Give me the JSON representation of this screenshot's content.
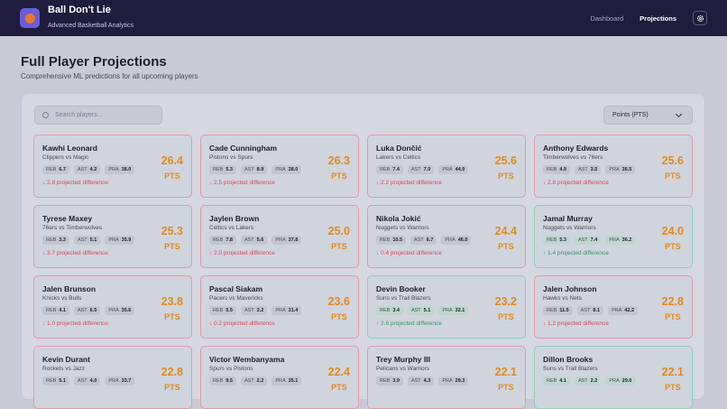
{
  "header": {
    "title": "Ball Don't Lie",
    "subtitle": "Advanced Basketball Analytics",
    "nav": [
      "Dashboard",
      "Projections"
    ]
  },
  "page": {
    "title": "Full Player Projections",
    "subtitle": "Comprehensive ML predictions for all upcoming players"
  },
  "controls": {
    "search_placeholder": "Search players...",
    "select": "Points (PTS)"
  },
  "players": [
    {
      "name": "Kawhi Leonard",
      "matchup": "Clippers vs Magic",
      "stats": [
        {
          "label": "REB",
          "value": "6.7"
        },
        {
          "label": "AST",
          "value": "4.2"
        },
        {
          "label": "PRA",
          "value": "38.0"
        }
      ],
      "projection": "26.4",
      "unit": "PTS",
      "difference": "↓ 2.8 projected difference",
      "trend": "down"
    },
    {
      "name": "Cade Cunningham",
      "matchup": "Pistons vs Spurs",
      "stats": [
        {
          "label": "REB",
          "value": "5.3"
        },
        {
          "label": "AST",
          "value": "8.9"
        },
        {
          "label": "PRA",
          "value": "38.0"
        }
      ],
      "projection": "26.3",
      "unit": "PTS",
      "difference": "↓ 2.5 projected difference",
      "trend": "down"
    },
    {
      "name": "Luka Dončić",
      "matchup": "Lakers vs Celtics",
      "stats": [
        {
          "label": "REB",
          "value": "7.4"
        },
        {
          "label": "AST",
          "value": "7.0"
        },
        {
          "label": "PRA",
          "value": "44.9"
        }
      ],
      "projection": "25.6",
      "unit": "PTS",
      "difference": "↓ 2.2 projected difference",
      "trend": "down"
    },
    {
      "name": "Anthony Edwards",
      "matchup": "Timberwolves vs 76ers",
      "stats": [
        {
          "label": "REB",
          "value": "4.9"
        },
        {
          "label": "AST",
          "value": "3.5"
        },
        {
          "label": "PRA",
          "value": "36.5"
        }
      ],
      "projection": "25.6",
      "unit": "PTS",
      "difference": "↓ 2.8 projected difference",
      "trend": "down"
    },
    {
      "name": "Tyrese Maxey",
      "matchup": "76ers vs Timberwolves",
      "stats": [
        {
          "label": "REB",
          "value": "3.3"
        },
        {
          "label": "AST",
          "value": "5.1"
        },
        {
          "label": "PRA",
          "value": "35.9"
        }
      ],
      "projection": "25.3",
      "unit": "PTS",
      "difference": "↓ 3.7 projected difference",
      "trend": "down"
    },
    {
      "name": "Jaylen Brown",
      "matchup": "Celtics vs Lakers",
      "stats": [
        {
          "label": "REB",
          "value": "7.8"
        },
        {
          "label": "AST",
          "value": "5.6"
        },
        {
          "label": "PRA",
          "value": "37.8"
        }
      ],
      "projection": "25.0",
      "unit": "PTS",
      "difference": "↓ 2.0 projected difference",
      "trend": "down"
    },
    {
      "name": "Nikola Jokić",
      "matchup": "Nuggets vs Warriors",
      "stats": [
        {
          "label": "REB",
          "value": "10.5"
        },
        {
          "label": "AST",
          "value": "6.7"
        },
        {
          "label": "PRA",
          "value": "46.0"
        }
      ],
      "projection": "24.4",
      "unit": "PTS",
      "difference": "↓ 0.4 projected difference",
      "trend": "down"
    },
    {
      "name": "Jamal Murray",
      "matchup": "Nuggets vs Warriors",
      "stats": [
        {
          "label": "REB",
          "value": "5.3"
        },
        {
          "label": "AST",
          "value": "7.4"
        },
        {
          "label": "PRA",
          "value": "36.2"
        }
      ],
      "projection": "24.0",
      "unit": "PTS",
      "difference": "↑ 1.4 projected difference",
      "trend": "up"
    },
    {
      "name": "Jalen Brunson",
      "matchup": "Knicks vs Bulls",
      "stats": [
        {
          "label": "REB",
          "value": "4.1"
        },
        {
          "label": "AST",
          "value": "6.5"
        },
        {
          "label": "PRA",
          "value": "35.6"
        }
      ],
      "projection": "23.8",
      "unit": "PTS",
      "difference": "↓ 1.0 projected difference",
      "trend": "down"
    },
    {
      "name": "Pascal Siakam",
      "matchup": "Pacers vs Mavericks",
      "stats": [
        {
          "label": "REB",
          "value": "5.5"
        },
        {
          "label": "AST",
          "value": "3.2"
        },
        {
          "label": "PRA",
          "value": "31.4"
        }
      ],
      "projection": "23.6",
      "unit": "PTS",
      "difference": "↓ 0.2 projected difference",
      "trend": "down"
    },
    {
      "name": "Devin Booker",
      "matchup": "Suns vs Trail Blazers",
      "stats": [
        {
          "label": "REB",
          "value": "3.4"
        },
        {
          "label": "AST",
          "value": "5.1"
        },
        {
          "label": "PRA",
          "value": "32.1"
        }
      ],
      "projection": "23.2",
      "unit": "PTS",
      "difference": "↑ 2.6 projected difference",
      "trend": "up"
    },
    {
      "name": "Jalen Johnson",
      "matchup": "Hawks vs Nets",
      "stats": [
        {
          "label": "REB",
          "value": "11.5"
        },
        {
          "label": "AST",
          "value": "8.1"
        },
        {
          "label": "PRA",
          "value": "42.2"
        }
      ],
      "projection": "22.8",
      "unit": "PTS",
      "difference": "↓ 1.2 projected difference",
      "trend": "down"
    },
    {
      "name": "Kevin Durant",
      "matchup": "Rockets vs Jazz",
      "stats": [
        {
          "label": "REB",
          "value": "5.1"
        },
        {
          "label": "AST",
          "value": "4.0"
        },
        {
          "label": "PRA",
          "value": "33.7"
        }
      ],
      "projection": "22.8",
      "unit": "PTS",
      "trend": "down"
    },
    {
      "name": "Victor Wembanyama",
      "matchup": "Spurs vs Pistons",
      "stats": [
        {
          "label": "REB",
          "value": "9.5"
        },
        {
          "label": "AST",
          "value": "2.2"
        },
        {
          "label": "PRA",
          "value": "35.1"
        }
      ],
      "projection": "22.4",
      "unit": "PTS",
      "trend": "down"
    },
    {
      "name": "Trey Murphy III",
      "matchup": "Pelicans vs Warriors",
      "stats": [
        {
          "label": "REB",
          "value": "3.9"
        },
        {
          "label": "AST",
          "value": "4.3"
        },
        {
          "label": "PRA",
          "value": "29.3"
        }
      ],
      "projection": "22.1",
      "unit": "PTS",
      "trend": "down"
    },
    {
      "name": "Dillon Brooks",
      "matchup": "Suns vs Trail Blazers",
      "stats": [
        {
          "label": "REB",
          "value": "4.1"
        },
        {
          "label": "AST",
          "value": "2.2"
        },
        {
          "label": "PRA",
          "value": "29.0"
        }
      ],
      "projection": "22.1",
      "unit": "PTS",
      "trend": "up"
    }
  ]
}
